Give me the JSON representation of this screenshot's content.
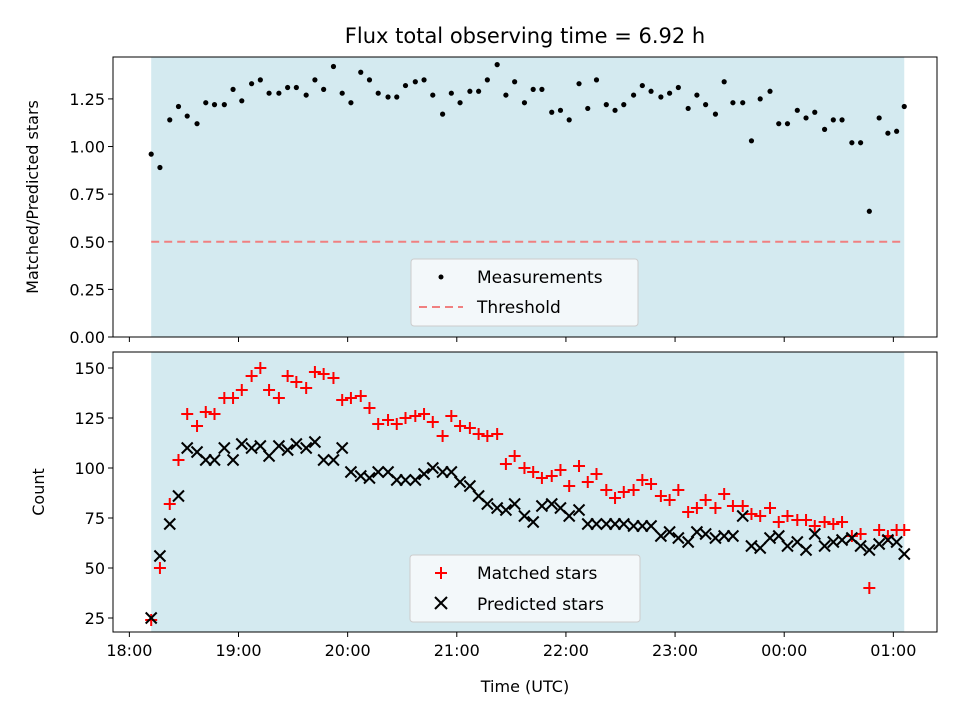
{
  "title": "Flux total observing time = 6.92 h",
  "colors": {
    "shade": "#d4eaf0",
    "threshold": "#f08080",
    "matched": "#ff0000",
    "predicted": "#000000",
    "measurement": "#000000"
  },
  "chart_data": [
    {
      "type": "scatter",
      "ylabel": "Matched/Predicted stars",
      "ylim": [
        0,
        1.47
      ],
      "xlim": [
        17.85,
        25.4
      ],
      "yticks": [
        0,
        0.25,
        0.5,
        0.75,
        1.0,
        1.25
      ],
      "ytick_labels": [
        "0.00",
        "0.25",
        "0.50",
        "0.75",
        "1.00",
        "1.25"
      ],
      "shaded_span": [
        18.2,
        25.1
      ],
      "threshold": 0.5,
      "legend_position": "lower center",
      "legend": [
        "Measurements",
        "Threshold"
      ],
      "series": [
        {
          "name": "Measurements",
          "marker": "dot",
          "x": [
            18.2,
            18.28,
            18.37,
            18.45,
            18.53,
            18.62,
            18.7,
            18.78,
            18.87,
            18.95,
            19.03,
            19.12,
            19.2,
            19.28,
            19.37,
            19.45,
            19.53,
            19.62,
            19.7,
            19.78,
            19.87,
            19.95,
            20.03,
            20.12,
            20.2,
            20.28,
            20.37,
            20.45,
            20.53,
            20.62,
            20.7,
            20.78,
            20.87,
            20.95,
            21.03,
            21.12,
            21.2,
            21.28,
            21.37,
            21.45,
            21.53,
            21.62,
            21.7,
            21.78,
            21.87,
            21.95,
            22.03,
            22.12,
            22.2,
            22.28,
            22.37,
            22.45,
            22.53,
            22.62,
            22.7,
            22.78,
            22.87,
            22.95,
            23.03,
            23.12,
            23.2,
            23.28,
            23.37,
            23.45,
            23.53,
            23.62,
            23.7,
            23.78,
            23.87,
            23.95,
            24.03,
            24.12,
            24.2,
            24.28,
            24.37,
            24.45,
            24.53,
            24.62,
            24.7,
            24.78,
            24.87,
            24.95,
            25.03,
            25.1
          ],
          "y": [
            0.96,
            0.89,
            1.14,
            1.21,
            1.16,
            1.12,
            1.23,
            1.22,
            1.22,
            1.3,
            1.24,
            1.33,
            1.35,
            1.28,
            1.28,
            1.31,
            1.31,
            1.27,
            1.35,
            1.3,
            1.42,
            1.28,
            1.23,
            1.39,
            1.35,
            1.28,
            1.26,
            1.26,
            1.32,
            1.34,
            1.35,
            1.27,
            1.17,
            1.28,
            1.23,
            1.29,
            1.29,
            1.35,
            1.43,
            1.27,
            1.34,
            1.23,
            1.3,
            1.3,
            1.18,
            1.19,
            1.14,
            1.33,
            1.2,
            1.35,
            1.22,
            1.19,
            1.22,
            1.27,
            1.32,
            1.29,
            1.26,
            1.28,
            1.31,
            1.2,
            1.27,
            1.22,
            1.17,
            1.34,
            1.23,
            1.23,
            1.03,
            1.25,
            1.29,
            1.12,
            1.12,
            1.19,
            1.15,
            1.18,
            1.09,
            1.14,
            1.14,
            1.02,
            1.02,
            0.66,
            1.15,
            1.07,
            1.08,
            1.21
          ]
        },
        {
          "name": "Threshold",
          "marker": "dashed-line",
          "y": [
            0.5
          ]
        }
      ]
    },
    {
      "type": "scatter",
      "ylabel": "Count",
      "xlabel": "Time (UTC)",
      "ylim": [
        18,
        158
      ],
      "xlim": [
        17.85,
        25.4
      ],
      "yticks": [
        25,
        50,
        75,
        100,
        125,
        150
      ],
      "ytick_labels": [
        "25",
        "50",
        "75",
        "100",
        "125",
        "150"
      ],
      "xticks": [
        18,
        19,
        20,
        21,
        22,
        23,
        24,
        25
      ],
      "xtick_labels": [
        "18:00",
        "19:00",
        "20:00",
        "21:00",
        "22:00",
        "23:00",
        "00:00",
        "01:00"
      ],
      "shaded_span": [
        18.2,
        25.1
      ],
      "legend_position": "lower center",
      "legend": [
        "Matched stars",
        "Predicted stars"
      ],
      "series": [
        {
          "name": "Matched stars",
          "marker": "plus",
          "x": [
            18.2,
            18.28,
            18.37,
            18.45,
            18.53,
            18.62,
            18.7,
            18.78,
            18.87,
            18.95,
            19.03,
            19.12,
            19.2,
            19.28,
            19.37,
            19.45,
            19.53,
            19.62,
            19.7,
            19.78,
            19.87,
            19.95,
            20.03,
            20.12,
            20.2,
            20.28,
            20.37,
            20.45,
            20.53,
            20.62,
            20.7,
            20.78,
            20.87,
            20.95,
            21.03,
            21.12,
            21.2,
            21.28,
            21.37,
            21.45,
            21.53,
            21.62,
            21.7,
            21.78,
            21.87,
            21.95,
            22.03,
            22.12,
            22.2,
            22.28,
            22.37,
            22.45,
            22.53,
            22.62,
            22.7,
            22.78,
            22.87,
            22.95,
            23.03,
            23.12,
            23.2,
            23.28,
            23.37,
            23.45,
            23.53,
            23.62,
            23.7,
            23.78,
            23.87,
            23.95,
            24.03,
            24.12,
            24.2,
            24.28,
            24.37,
            24.45,
            24.53,
            24.62,
            24.7,
            24.78,
            24.87,
            24.95,
            25.03,
            25.1
          ],
          "y": [
            24,
            50,
            82,
            104,
            127,
            121,
            128,
            127,
            135,
            135,
            139,
            146,
            150,
            139,
            135,
            146,
            143,
            140,
            148,
            147,
            145,
            134,
            135,
            136,
            130,
            122,
            124,
            122,
            125,
            126,
            127,
            123,
            116,
            126,
            121,
            120,
            117,
            116,
            117,
            102,
            106,
            100,
            98,
            95,
            96,
            99,
            91,
            101,
            93,
            97,
            89,
            85,
            88,
            89,
            94,
            92,
            86,
            84,
            89,
            78,
            80,
            84,
            80,
            87,
            81,
            81,
            77,
            76,
            80,
            73,
            76,
            74,
            74,
            71,
            73,
            72,
            73,
            66,
            67,
            40,
            69,
            66,
            69,
            69
          ]
        },
        {
          "name": "Predicted stars",
          "marker": "x",
          "x": [
            18.2,
            18.28,
            18.37,
            18.45,
            18.53,
            18.62,
            18.7,
            18.78,
            18.87,
            18.95,
            19.03,
            19.12,
            19.2,
            19.28,
            19.37,
            19.45,
            19.53,
            19.62,
            19.7,
            19.78,
            19.87,
            19.95,
            20.03,
            20.12,
            20.2,
            20.28,
            20.37,
            20.45,
            20.53,
            20.62,
            20.7,
            20.78,
            20.87,
            20.95,
            21.03,
            21.12,
            21.2,
            21.28,
            21.37,
            21.45,
            21.53,
            21.62,
            21.7,
            21.78,
            21.87,
            21.95,
            22.03,
            22.12,
            22.2,
            22.28,
            22.37,
            22.45,
            22.53,
            22.62,
            22.7,
            22.78,
            22.87,
            22.95,
            23.03,
            23.12,
            23.2,
            23.28,
            23.37,
            23.45,
            23.53,
            23.62,
            23.7,
            23.78,
            23.87,
            23.95,
            24.03,
            24.12,
            24.2,
            24.28,
            24.37,
            24.45,
            24.53,
            24.62,
            24.7,
            24.78,
            24.87,
            24.95,
            25.03,
            25.1
          ],
          "y": [
            25,
            56,
            72,
            86,
            110,
            108,
            104,
            104,
            110,
            104,
            112,
            110,
            111,
            106,
            111,
            109,
            112,
            110,
            113,
            104,
            104,
            110,
            98,
            96,
            95,
            98,
            98,
            94,
            94,
            94,
            97,
            100,
            98,
            98,
            93,
            91,
            86,
            82,
            80,
            79,
            82,
            76,
            73,
            81,
            82,
            80,
            76,
            79,
            72,
            72,
            72,
            72,
            72,
            71,
            71,
            71,
            66,
            68,
            65,
            63,
            68,
            67,
            65,
            66,
            66,
            76,
            61,
            60,
            65,
            66,
            61,
            63,
            59,
            67,
            61,
            63,
            64,
            65,
            61,
            59,
            62,
            64,
            63,
            57
          ]
        }
      ]
    }
  ]
}
